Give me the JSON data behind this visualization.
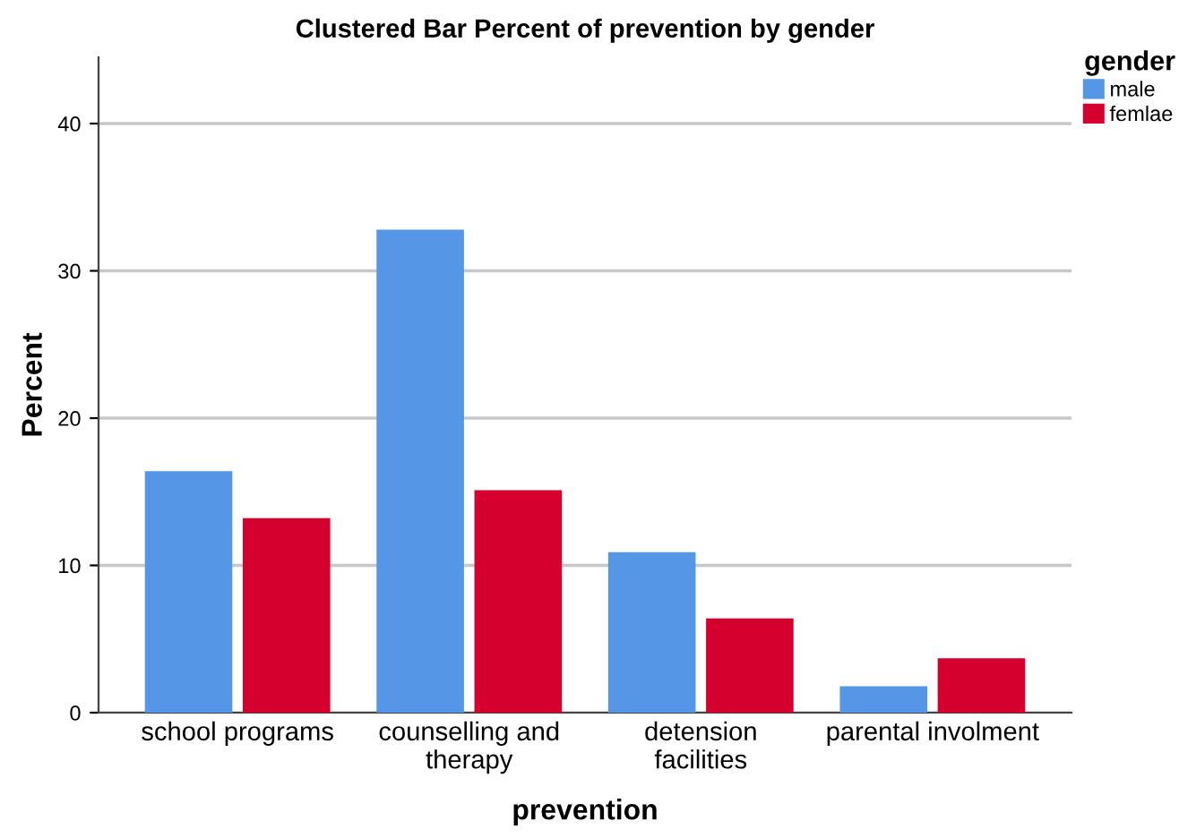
{
  "chart_data": {
    "type": "bar",
    "title": "Clustered Bar Percent of prevention by gender",
    "xlabel": "prevention",
    "ylabel": "Percent",
    "legend_title": "gender",
    "categories": [
      "school programs",
      "counselling and\ntherapy",
      "detension\nfacilities",
      "parental involment"
    ],
    "series": [
      {
        "name": "male",
        "color": "#5596e6",
        "values": [
          16.4,
          32.8,
          10.9,
          1.8
        ]
      },
      {
        "name": "femlae",
        "color": "#d6002f",
        "values": [
          13.2,
          15.1,
          6.4,
          3.7
        ]
      }
    ],
    "ylim": [
      0,
      44.5
    ],
    "yticks": [
      0,
      10,
      20,
      30,
      40
    ],
    "grid": "y",
    "legend": "top right"
  }
}
